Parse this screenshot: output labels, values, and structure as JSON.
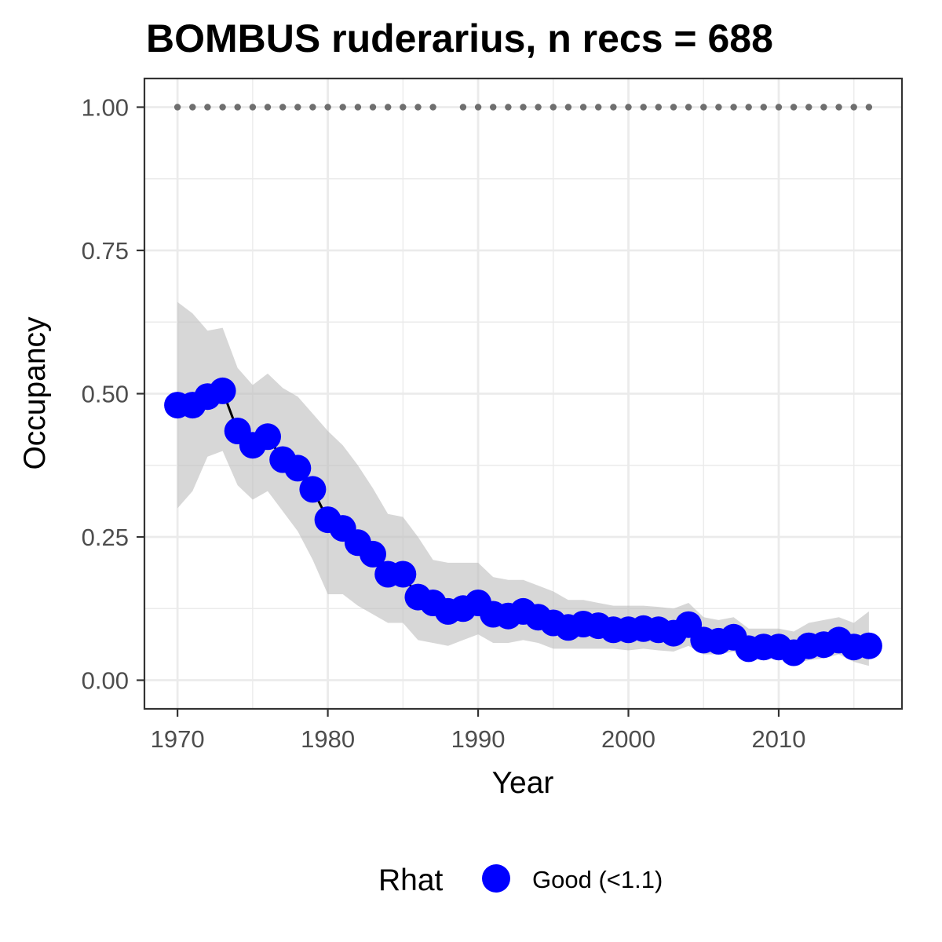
{
  "chart_data": {
    "type": "line",
    "title": "BOMBUS ruderarius, n recs = 688",
    "xlabel": "Year",
    "ylabel": "Occupancy",
    "xlim": [
      1967.8,
      2018.2
    ],
    "ylim": [
      -0.05,
      1.05
    ],
    "x_ticks": [
      1970,
      1980,
      1990,
      2000,
      2010
    ],
    "x_tick_labels": [
      "1970",
      "1980",
      "1990",
      "2000",
      "2010"
    ],
    "y_ticks": [
      0,
      0.25,
      0.5,
      0.75,
      1.0
    ],
    "y_tick_labels": [
      "0.00",
      "0.25",
      "0.50",
      "0.75",
      "1.00"
    ],
    "grid": true,
    "legend": {
      "placement": "bottom",
      "title": "Rhat",
      "entries": [
        {
          "label": "Good (<1.1)",
          "color": "#0000ff"
        }
      ]
    },
    "colors": {
      "points": "#0000ff",
      "line": "#000000",
      "ribbon": "#bebebe",
      "records": "#6e6e6e",
      "grid": "#ebebeb",
      "panel_border": "#333333"
    },
    "x": [
      1970,
      1971,
      1972,
      1973,
      1974,
      1975,
      1976,
      1977,
      1978,
      1979,
      1980,
      1981,
      1982,
      1983,
      1984,
      1985,
      1986,
      1987,
      1988,
      1989,
      1990,
      1991,
      1992,
      1993,
      1994,
      1995,
      1996,
      1997,
      1998,
      1999,
      2000,
      2001,
      2002,
      2003,
      2004,
      2005,
      2006,
      2007,
      2008,
      2009,
      2010,
      2011,
      2012,
      2013,
      2014,
      2015,
      2016
    ],
    "series": [
      {
        "name": "Good (<1.1)",
        "values": [
          0.48,
          0.48,
          0.495,
          0.505,
          0.435,
          0.41,
          0.425,
          0.385,
          0.37,
          0.333,
          0.28,
          0.265,
          0.24,
          0.22,
          0.185,
          0.185,
          0.145,
          0.135,
          0.12,
          0.125,
          0.135,
          0.115,
          0.112,
          0.12,
          0.11,
          0.1,
          0.092,
          0.098,
          0.095,
          0.088,
          0.088,
          0.09,
          0.088,
          0.082,
          0.097,
          0.07,
          0.068,
          0.075,
          0.055,
          0.058,
          0.058,
          0.048,
          0.06,
          0.062,
          0.07,
          0.058,
          0.06
        ],
        "lower": [
          0.3,
          0.33,
          0.39,
          0.4,
          0.34,
          0.315,
          0.33,
          0.295,
          0.26,
          0.21,
          0.15,
          0.15,
          0.13,
          0.115,
          0.1,
          0.1,
          0.07,
          0.065,
          0.06,
          0.07,
          0.08,
          0.065,
          0.065,
          0.07,
          0.065,
          0.055,
          0.055,
          0.055,
          0.055,
          0.055,
          0.052,
          0.055,
          0.052,
          0.05,
          0.06,
          0.045,
          0.045,
          0.05,
          0.033,
          0.038,
          0.038,
          0.028,
          0.035,
          0.038,
          0.045,
          0.032,
          0.025
        ],
        "upper": [
          0.66,
          0.64,
          0.61,
          0.615,
          0.545,
          0.515,
          0.535,
          0.51,
          0.495,
          0.465,
          0.435,
          0.41,
          0.375,
          0.335,
          0.29,
          0.285,
          0.25,
          0.21,
          0.205,
          0.205,
          0.205,
          0.18,
          0.175,
          0.175,
          0.165,
          0.155,
          0.14,
          0.14,
          0.135,
          0.13,
          0.13,
          0.13,
          0.128,
          0.125,
          0.135,
          0.11,
          0.105,
          0.11,
          0.09,
          0.09,
          0.09,
          0.085,
          0.1,
          0.105,
          0.11,
          0.1,
          0.12
        ]
      }
    ],
    "record_years": [
      1970,
      1971,
      1972,
      1973,
      1974,
      1975,
      1976,
      1977,
      1978,
      1979,
      1980,
      1981,
      1982,
      1983,
      1984,
      1985,
      1986,
      1987,
      1989,
      1990,
      1991,
      1992,
      1993,
      1994,
      1995,
      1996,
      1997,
      1998,
      1999,
      2000,
      2001,
      2002,
      2003,
      2004,
      2005,
      2006,
      2007,
      2008,
      2009,
      2010,
      2011,
      2012,
      2013,
      2014,
      2015,
      2016
    ],
    "record_value": 1.0
  }
}
